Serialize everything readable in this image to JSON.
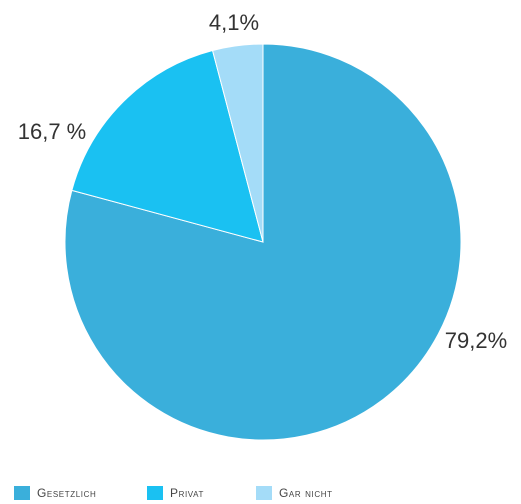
{
  "chart_data": {
    "type": "pie",
    "categories": [
      "Gesetzlich",
      "Privat",
      "Gar nicht"
    ],
    "values": [
      79.2,
      16.7,
      4.1
    ],
    "value_labels": [
      "79,2%",
      "16,7 %",
      "4,1%"
    ],
    "colors": [
      "#3aafdb",
      "#1ac1f2",
      "#a4dcf8"
    ],
    "title": "",
    "legend_position": "bottom"
  }
}
